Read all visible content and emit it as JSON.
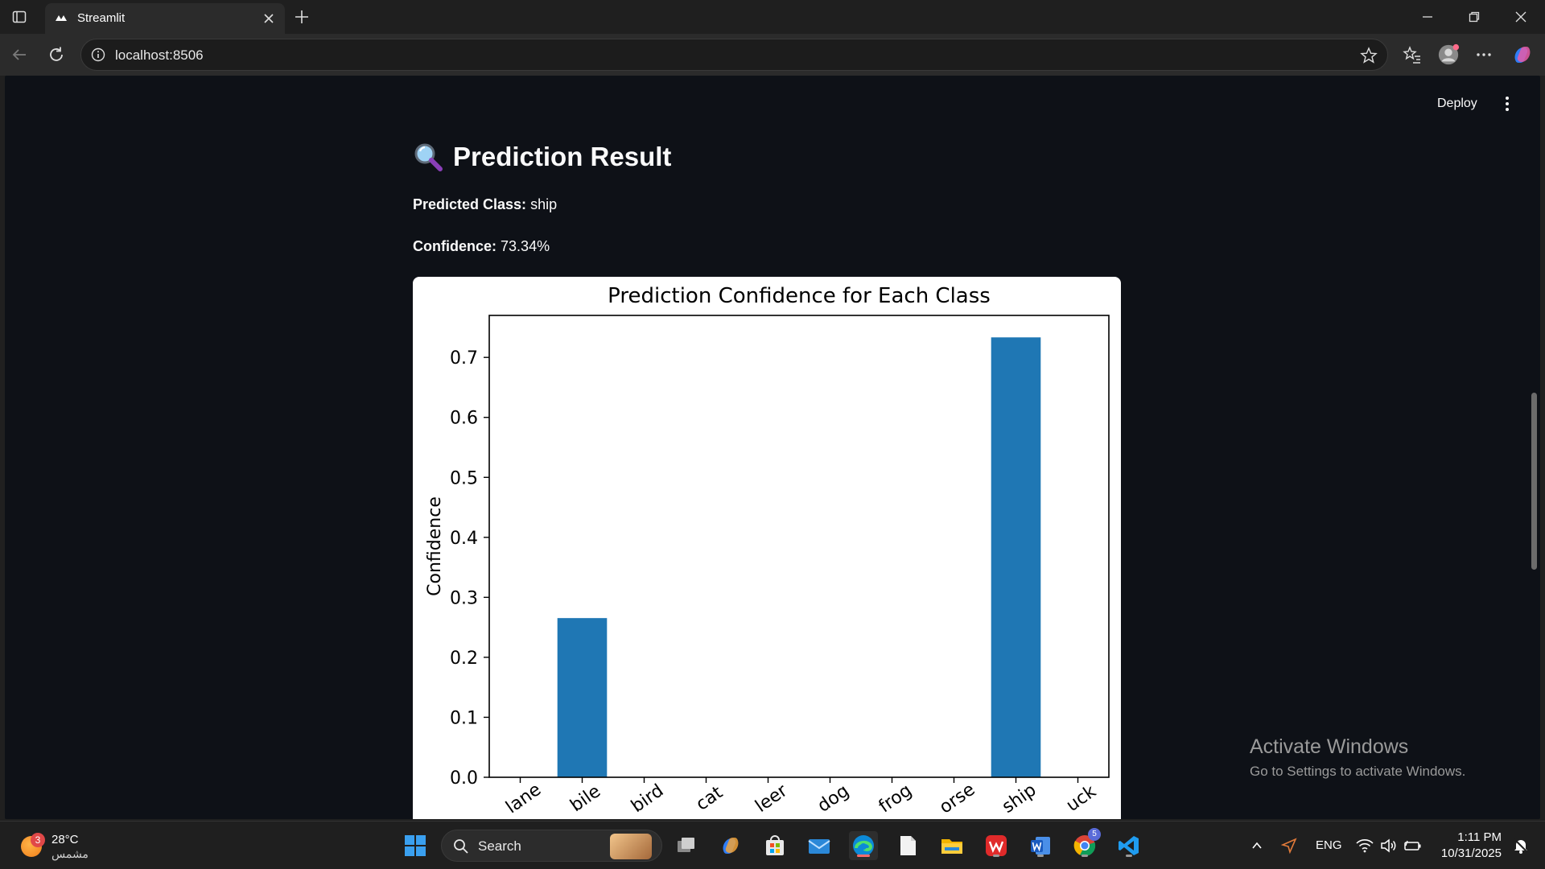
{
  "browser": {
    "tab_title": "Streamlit",
    "url": "localhost:8506"
  },
  "app": {
    "deploy_label": "Deploy",
    "heading": "Prediction Result",
    "predicted_label": "Predicted Class:",
    "predicted_value": "ship",
    "confidence_label": "Confidence:",
    "confidence_value": "73.34%"
  },
  "chart_data": {
    "type": "bar",
    "title": "Prediction Confidence for Each Class",
    "xlabel": "",
    "ylabel": "Confidence",
    "categories": [
      "airplane",
      "automobile",
      "bird",
      "cat",
      "deer",
      "dog",
      "frog",
      "horse",
      "ship",
      "truck"
    ],
    "visible_tick_text": [
      "lane",
      "bile",
      "bird",
      "cat",
      "leer",
      "dog",
      "frog",
      "orse",
      "ship",
      "uck"
    ],
    "values": [
      0.0,
      0.2654,
      0.0,
      0.0,
      0.0,
      0.0,
      0.0,
      0.0,
      0.7334,
      0.0
    ],
    "ylim": [
      0.0,
      0.77
    ],
    "yticks": [
      0.0,
      0.1,
      0.2,
      0.3,
      0.4,
      0.5,
      0.6,
      0.7
    ],
    "bar_color": "#1f77b4",
    "grid": false
  },
  "watermark": {
    "title": "Activate Windows",
    "subtitle": "Go to Settings to activate Windows."
  },
  "taskbar": {
    "weather_badge": "3",
    "weather_temp": "28°C",
    "weather_condition": "مشمس",
    "search_label": "Search",
    "language": "ENG",
    "time": "1:11 PM",
    "date": "10/31/2025",
    "chrome_badge": "5"
  }
}
